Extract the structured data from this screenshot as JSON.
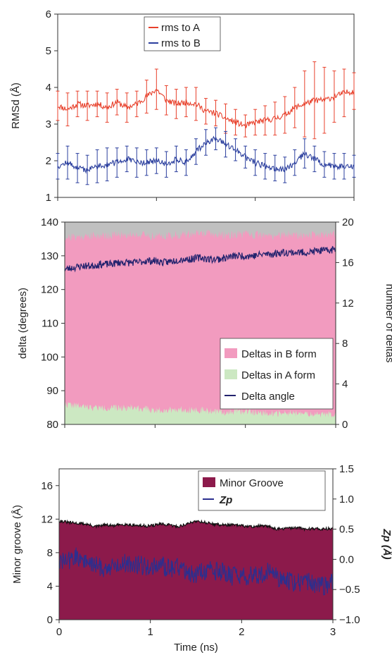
{
  "chart_data": [
    {
      "type": "line",
      "ylabel": "RMSd (Å)",
      "ylim": [
        1,
        6
      ],
      "yticks": [
        "1",
        "2",
        "3",
        "4",
        "5",
        "6"
      ],
      "xlim": [
        0,
        3
      ],
      "legend_placement": "top-center",
      "series": [
        {
          "name": "rms to A",
          "color": "#e8412c",
          "x": [
            0,
            0.1,
            0.2,
            0.3,
            0.4,
            0.5,
            0.6,
            0.7,
            0.8,
            0.9,
            1.0,
            1.1,
            1.2,
            1.3,
            1.4,
            1.5,
            1.6,
            1.7,
            1.8,
            1.9,
            2.0,
            2.1,
            2.2,
            2.3,
            2.4,
            2.5,
            2.6,
            2.7,
            2.8,
            2.9,
            3.0
          ],
          "values": [
            3.5,
            3.4,
            3.55,
            3.5,
            3.55,
            3.45,
            3.6,
            3.45,
            3.55,
            3.75,
            3.95,
            3.65,
            3.55,
            3.6,
            3.55,
            3.35,
            3.3,
            3.15,
            3.05,
            2.95,
            3.05,
            3.1,
            3.15,
            3.25,
            3.45,
            3.55,
            3.65,
            3.65,
            3.75,
            3.85,
            3.9
          ],
          "error": [
            0.4,
            0.45,
            0.35,
            0.4,
            0.35,
            0.4,
            0.35,
            0.4,
            0.35,
            0.45,
            0.55,
            0.4,
            0.4,
            0.4,
            0.45,
            0.35,
            0.35,
            0.4,
            0.35,
            0.3,
            0.35,
            0.4,
            0.45,
            0.5,
            0.55,
            0.9,
            1.05,
            0.9,
            0.7,
            0.65,
            0.5
          ]
        },
        {
          "name": "rms to B",
          "color": "#2b3f9e",
          "x": [
            0,
            0.1,
            0.2,
            0.3,
            0.4,
            0.5,
            0.6,
            0.7,
            0.8,
            0.9,
            1.0,
            1.1,
            1.2,
            1.3,
            1.4,
            1.5,
            1.6,
            1.7,
            1.8,
            1.9,
            2.0,
            2.1,
            2.2,
            2.3,
            2.4,
            2.5,
            2.6,
            2.7,
            2.8,
            2.9,
            3.0
          ],
          "values": [
            1.85,
            1.95,
            1.8,
            1.75,
            1.85,
            1.9,
            1.95,
            2.05,
            1.95,
            1.95,
            2.0,
            1.9,
            2.05,
            1.95,
            2.25,
            2.5,
            2.6,
            2.45,
            2.3,
            2.1,
            1.95,
            1.85,
            1.8,
            1.75,
            1.95,
            2.2,
            2.05,
            1.9,
            1.85,
            1.85,
            1.85
          ],
          "error": [
            0.35,
            0.45,
            0.4,
            0.4,
            0.45,
            0.45,
            0.4,
            0.35,
            0.4,
            0.35,
            0.35,
            0.35,
            0.35,
            0.35,
            0.35,
            0.35,
            0.3,
            0.35,
            0.3,
            0.3,
            0.35,
            0.35,
            0.35,
            0.35,
            0.35,
            0.4,
            0.35,
            0.35,
            0.35,
            0.35,
            0.3
          ]
        }
      ]
    },
    {
      "type": "area",
      "ylabel": "delta (degrees)",
      "ylim": [
        80,
        140
      ],
      "yticks": [
        "80",
        "90",
        "100",
        "110",
        "120",
        "130",
        "140"
      ],
      "y2label": "number of deltas",
      "y2lim": [
        0,
        20
      ],
      "y2ticks": [
        "0",
        "4",
        "8",
        "12",
        "16",
        "20"
      ],
      "xlim": [
        0,
        3
      ],
      "legend_placement": "center-right",
      "background_color": "#c0c0c0",
      "series": [
        {
          "name": "Deltas in B form",
          "color": "#f29bbf",
          "axis": "right",
          "x": [
            0,
            0.25,
            0.5,
            0.75,
            1.0,
            1.25,
            1.5,
            1.75,
            2.0,
            2.25,
            2.5,
            2.75,
            3.0
          ],
          "values": [
            18.5,
            18.6,
            18.7,
            18.8,
            18.6,
            18.7,
            18.9,
            18.7,
            18.8,
            18.6,
            18.8,
            18.7,
            18.9
          ]
        },
        {
          "name": "Deltas in A form",
          "color": "#cce8c2",
          "axis": "right",
          "x": [
            0,
            0.25,
            0.5,
            0.75,
            1.0,
            1.25,
            1.5,
            1.75,
            2.0,
            2.25,
            2.5,
            2.75,
            3.0
          ],
          "values": [
            2.0,
            1.7,
            1.6,
            1.7,
            1.4,
            1.5,
            1.4,
            1.2,
            1.3,
            1.1,
            1.1,
            1.0,
            1.0
          ]
        },
        {
          "name": "Delta angle",
          "color": "#23236e",
          "axis": "left",
          "x": [
            0,
            0.1,
            0.2,
            0.3,
            0.4,
            0.5,
            0.6,
            0.7,
            0.8,
            0.9,
            1.0,
            1.1,
            1.2,
            1.3,
            1.4,
            1.5,
            1.6,
            1.7,
            1.8,
            1.9,
            2.0,
            2.1,
            2.2,
            2.3,
            2.4,
            2.5,
            2.6,
            2.7,
            2.8,
            2.9,
            3.0
          ],
          "values": [
            126,
            126.5,
            127,
            127,
            127.5,
            127.5,
            128,
            128,
            128,
            128.5,
            128.5,
            128,
            128.5,
            129,
            129,
            129.5,
            129,
            129,
            129.5,
            130,
            130,
            130,
            130.5,
            130.5,
            131,
            131,
            131,
            131,
            131.5,
            131.5,
            132
          ]
        }
      ]
    },
    {
      "type": "area",
      "ylabel": "Minor groove (Å)",
      "ylim": [
        0,
        18
      ],
      "yticks": [
        "0",
        "4",
        "8",
        "12",
        "16"
      ],
      "y2label": "Zp (Å)",
      "y2lim": [
        -1.0,
        1.5
      ],
      "y2ticks": [
        "−1.0",
        "−0.5",
        "0.0",
        "0.5",
        "1.0",
        "1.5"
      ],
      "xlabel": "Time (ns)",
      "xlim": [
        0,
        3
      ],
      "xticks": [
        "0",
        "1",
        "2",
        "3"
      ],
      "legend_placement": "top-right",
      "series": [
        {
          "name": "Minor Groove",
          "color": "#8c1a4b",
          "axis": "left",
          "x": [
            0,
            0.1,
            0.2,
            0.3,
            0.4,
            0.5,
            0.6,
            0.7,
            0.8,
            0.9,
            1.0,
            1.1,
            1.2,
            1.3,
            1.4,
            1.5,
            1.6,
            1.7,
            1.8,
            1.9,
            2.0,
            2.1,
            2.2,
            2.3,
            2.4,
            2.5,
            2.6,
            2.7,
            2.8,
            2.9,
            3.0
          ],
          "values": [
            11.8,
            11.6,
            11.5,
            11.4,
            11.1,
            11.3,
            11.2,
            11.4,
            11.3,
            11.2,
            11.2,
            11.4,
            11.3,
            11.1,
            11.4,
            11.8,
            11.6,
            11.4,
            11.3,
            11.3,
            11.2,
            11.1,
            11.2,
            11.1,
            10.8,
            10.9,
            11.0,
            10.8,
            10.9,
            10.8,
            10.9
          ]
        },
        {
          "name": "Zp",
          "color": "#2b2f8f",
          "axis": "right",
          "x": [
            0,
            0.1,
            0.2,
            0.3,
            0.4,
            0.5,
            0.6,
            0.7,
            0.8,
            0.9,
            1.0,
            1.1,
            1.2,
            1.3,
            1.4,
            1.5,
            1.6,
            1.7,
            1.8,
            1.9,
            2.0,
            2.1,
            2.2,
            2.3,
            2.4,
            2.5,
            2.6,
            2.7,
            2.8,
            2.9,
            3.0
          ],
          "values": [
            -0.05,
            -0.02,
            0.05,
            -0.05,
            -0.1,
            -0.15,
            -0.12,
            -0.05,
            -0.08,
            -0.1,
            -0.12,
            -0.1,
            -0.15,
            -0.12,
            -0.2,
            -0.25,
            -0.2,
            -0.18,
            -0.22,
            -0.28,
            -0.3,
            -0.25,
            -0.3,
            -0.2,
            -0.3,
            -0.35,
            -0.4,
            -0.35,
            -0.4,
            -0.45,
            -0.35
          ]
        }
      ]
    }
  ]
}
